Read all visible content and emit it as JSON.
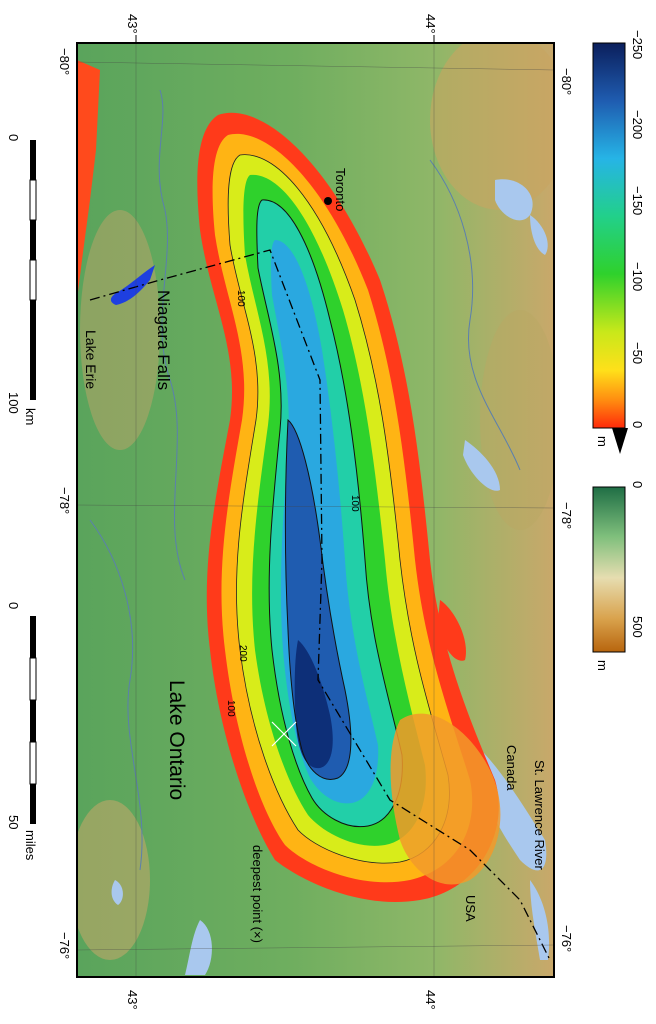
{
  "lat_ticks": {
    "south": "43°",
    "north": "44°"
  },
  "lon_ticks": {
    "west": "−80°",
    "mid": "−78°",
    "east": "−76°"
  },
  "scale_km": {
    "zero": "0",
    "hundred": "100",
    "unit": "km"
  },
  "scale_miles": {
    "zero": "0",
    "fifty": "50",
    "unit": "miles"
  },
  "depth_colorbar": {
    "max": "−250",
    "t200": "−200",
    "t150": "−150",
    "t100": "−100",
    "t50": "−50",
    "zero": "0",
    "unit": "m"
  },
  "elev_colorbar": {
    "zero": "0",
    "t500": "500",
    "unit": "m"
  },
  "places": {
    "toronto": "Toronto",
    "niagara": "Niagara Falls",
    "lake_erie": "Lake Erie",
    "lake_ontario": "Lake Ontario",
    "st_lawrence": "St. Lawrence River",
    "canada": "Canada",
    "usa": "USA",
    "deepest": "deepest point (×)"
  },
  "contours": {
    "c100a": "100",
    "c100b": "100",
    "c100c": "100",
    "c200": "200"
  },
  "colors": {
    "land_low": "#4c9a55",
    "land_high": "#c9874a",
    "water_inland": "#a9c8ee",
    "lake_deep": "#0d2f78",
    "shore": "#ff3a1a"
  }
}
